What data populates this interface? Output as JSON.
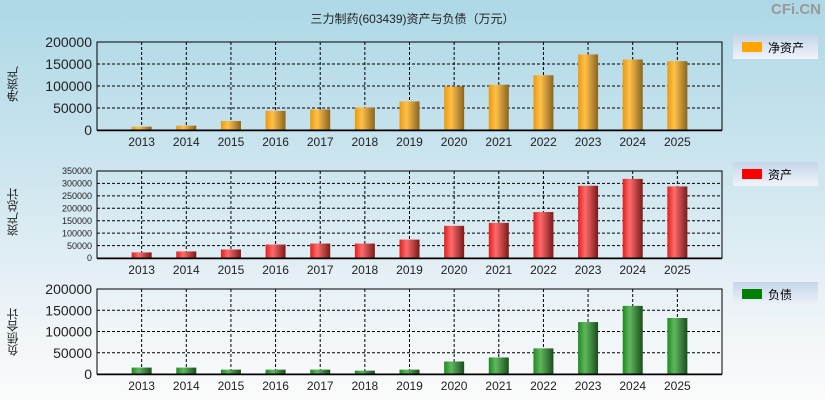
{
  "title": "三力制药(603439)资产与负债（万元）",
  "brand": "CFi.CN",
  "chart_data": [
    {
      "type": "bar",
      "ylabel": "净资产",
      "legend": "净资产",
      "color": "#ffa500",
      "ylim": [
        0,
        200000
      ],
      "yticks": [
        0,
        50000,
        100000,
        150000,
        200000
      ],
      "categories": [
        "2013",
        "2014",
        "2015",
        "2016",
        "2017",
        "2018",
        "2019",
        "2020",
        "2021",
        "2022",
        "2023",
        "2024",
        "2025"
      ],
      "values": [
        7600,
        9900,
        20600,
        43500,
        46600,
        51100,
        64900,
        99200,
        103000,
        124400,
        171800,
        160300,
        156500
      ]
    },
    {
      "type": "bar",
      "ylabel": "资产总计",
      "legend": "资产",
      "color": "#ff0000",
      "ylim": [
        0,
        350000
      ],
      "yticks": [
        0,
        50000,
        100000,
        150000,
        200000,
        250000,
        300000,
        350000
      ],
      "categories": [
        "2013",
        "2014",
        "2015",
        "2016",
        "2017",
        "2018",
        "2019",
        "2020",
        "2021",
        "2022",
        "2023",
        "2024",
        "2025"
      ],
      "values": [
        22500,
        26400,
        34300,
        54200,
        58100,
        58100,
        74000,
        129400,
        141300,
        184900,
        290600,
        318300,
        287900
      ]
    },
    {
      "type": "bar",
      "ylabel": "负债合计",
      "legend": "负债",
      "color": "#008000",
      "ylim": [
        0,
        200000
      ],
      "yticks": [
        0,
        50000,
        100000,
        150000,
        200000
      ],
      "categories": [
        "2013",
        "2014",
        "2015",
        "2016",
        "2017",
        "2018",
        "2019",
        "2020",
        "2021",
        "2022",
        "2023",
        "2024",
        "2025"
      ],
      "values": [
        15100,
        15100,
        10300,
        10300,
        10300,
        7900,
        10300,
        29400,
        38900,
        60300,
        122200,
        160300,
        131700
      ]
    }
  ]
}
